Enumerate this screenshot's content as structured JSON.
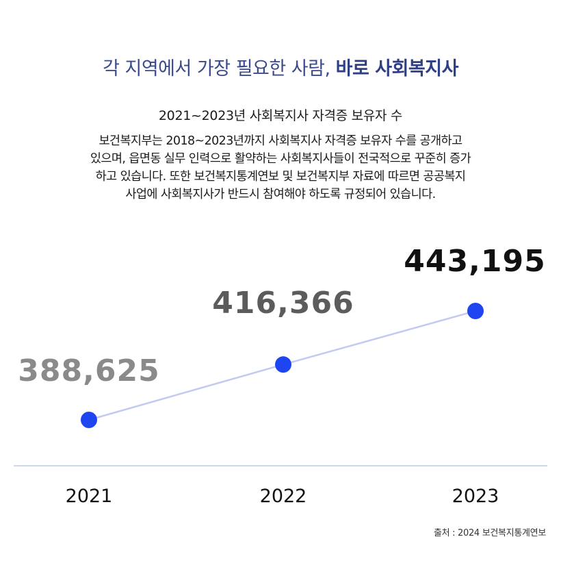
{
  "headline": {
    "prefix": "각 지역에서 가장 필요한 사람,",
    "emphasis": "바로 사회복지사"
  },
  "subtitle": "2021~2023년 사회복지사 자격증 보유자 수",
  "description": [
    "보건복지부는 2018~2023년까지 사회복지사 자격증 보유자 수를 공개하고",
    "있으며, 읍면동 실무 인력으로 활약하는 사회복지사들이 전국적으로 꾸준히 증가",
    "하고 있습니다. 또한 보건복지통계연보 및 보건복지부 자료에 따르면 공공복지",
    "사업에 사회복지사가 반드시 참여해야 하도록 규정되어 있습니다."
  ],
  "source": "출처 : 2024 보건복지통계연보",
  "colors": {
    "point": "#1f45f0",
    "line": "#c3caf0",
    "axis": "#bcc8ee",
    "label_latest": "#111111",
    "label_mid": "#5c5c5c",
    "label_early": "#8a8a8a"
  },
  "chart_data": {
    "type": "line",
    "categories": [
      "2021",
      "2022",
      "2023"
    ],
    "values": [
      388625,
      416366,
      443195
    ],
    "value_labels": [
      "388,625",
      "416,366",
      "443,195"
    ],
    "grid": false,
    "legend": "none"
  }
}
